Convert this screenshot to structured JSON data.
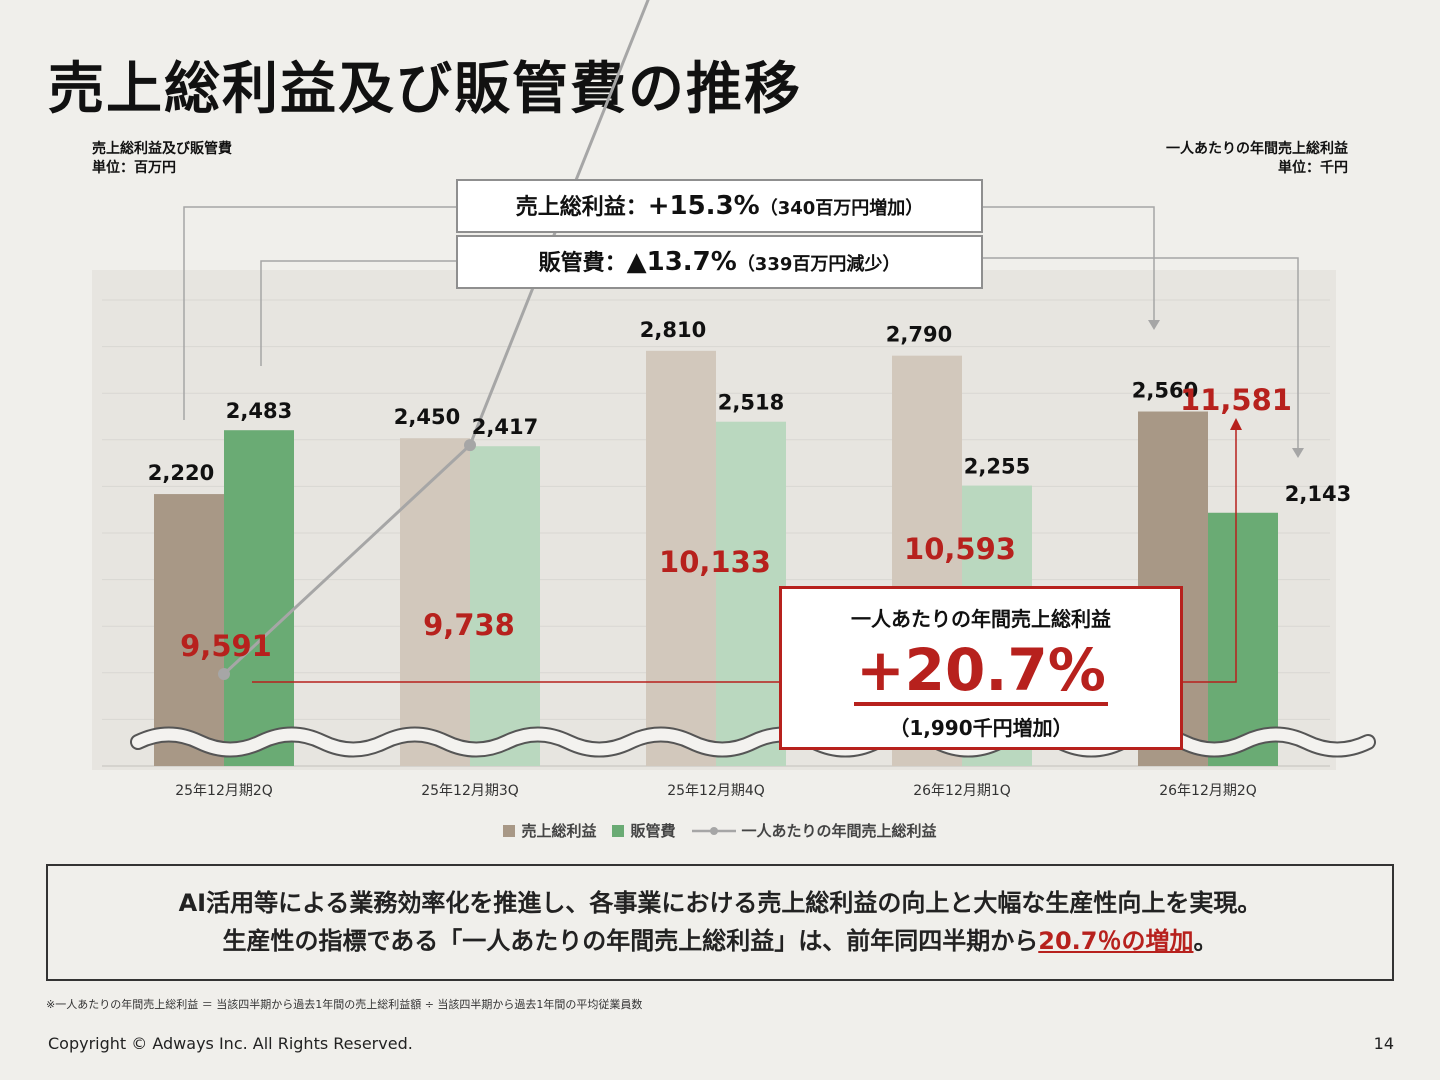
{
  "title": "売上総利益及び販管費の推移",
  "left_unit": {
    "line1": "売上総利益及び販管費",
    "line2": "単位：百万円"
  },
  "right_unit": {
    "line1": "一人あたりの年間売上総利益",
    "line2": "単位：千円"
  },
  "callouts": {
    "gross_profit": {
      "label": "売上総利益：",
      "value": "+15.3%",
      "note": "（340百万円増加）"
    },
    "sga": {
      "label": "販管費：",
      "value": "▲13.7%",
      "note": "（339百万円減少）"
    }
  },
  "kpi": {
    "title": "一人あたりの年間売上総利益",
    "value": "+20.7%",
    "note": "（1,990千円増加）"
  },
  "colors": {
    "gross_profit": "#a89886",
    "gross_profit_light": "#d2c8bc",
    "sga": "#6aab74",
    "sga_light": "#bad8bf",
    "line": "#a6a6a6",
    "accent": "#b7211d"
  },
  "chart_data": {
    "type": "bar",
    "categories": [
      "25年12月期2Q",
      "25年12月期3Q",
      "25年12月期4Q",
      "26年12月期1Q",
      "26年12月期2Q"
    ],
    "series": [
      {
        "name": "売上総利益",
        "type": "bar",
        "axis": "left",
        "values": [
          2220,
          2450,
          2810,
          2790,
          2560
        ],
        "labels": [
          "2,220",
          "2,450",
          "2,810",
          "2,790",
          "2,560"
        ]
      },
      {
        "name": "販管費",
        "type": "bar",
        "axis": "left",
        "values": [
          2483,
          2417,
          2518,
          2255,
          2143
        ],
        "labels": [
          "2,483",
          "2,417",
          "2,518",
          "2,255",
          "2,143"
        ]
      },
      {
        "name": "一人あたりの年間売上総利益",
        "type": "line",
        "axis": "right",
        "values": [
          9591,
          9738,
          10133,
          10593,
          11581
        ],
        "labels": [
          "9,591",
          "9,738",
          "10,133",
          "10,593",
          "11,581"
        ]
      }
    ],
    "axis_break": true,
    "grid": true,
    "legend_position": "bottom"
  },
  "legend": [
    {
      "label": "売上総利益"
    },
    {
      "label": "販管費"
    },
    {
      "label": "一人あたりの年間売上総利益"
    }
  ],
  "summary": {
    "line1": "AI活用等による業務効率化を推進し、各事業における売上総利益の向上と大幅な生産性向上を実現。",
    "line2_pre": "生産性の指標である「一人あたりの年間売上総利益」は、前年同四半期から",
    "line2_hl": "20.7％の増加",
    "line2_post": "。"
  },
  "footnote": "※一人あたりの年間売上総利益 ＝ 当該四半期から過去1年間の売上総利益額 ÷ 当該四半期から過去1年間の平均従業員数",
  "copyright": "Copyright © Adways Inc. All Rights Reserved.",
  "page_number": "14"
}
